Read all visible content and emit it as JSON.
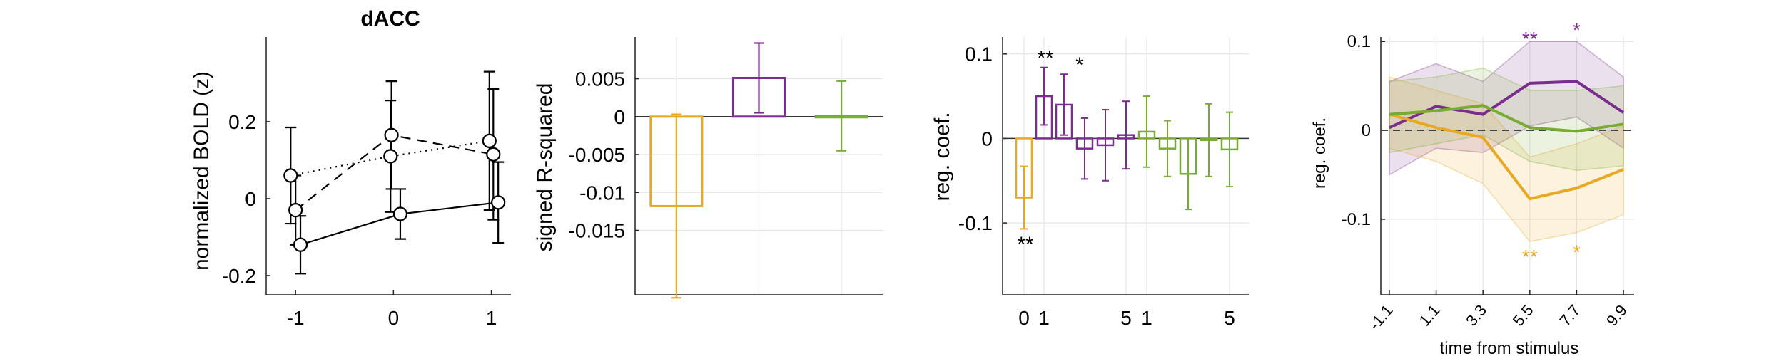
{
  "colors": {
    "yellow": "#e8a820",
    "purple": "#7b2d8e",
    "green": "#77ac30",
    "black": "#000000",
    "grid": "#e6e6e6"
  },
  "chart_data": [
    {
      "id": "A",
      "type": "line",
      "title": "dACC",
      "xlabel": "",
      "ylabel": "normalized BOLD (z)",
      "xlim": [
        -1.3,
        1.2
      ],
      "ylim": [
        -0.25,
        0.42
      ],
      "xticks": [
        -1,
        0,
        1
      ],
      "xtick_labels": [
        "-1",
        "0",
        "1"
      ],
      "yticks": [
        -0.2,
        0,
        0.2
      ],
      "ytick_labels": [
        "-0.2",
        "0",
        "0.2"
      ],
      "grid": false,
      "series": [
        {
          "style": "solid",
          "x": [
            -0.95,
            0.07,
            1.07
          ],
          "y": [
            -0.12,
            -0.04,
            -0.01
          ],
          "err": [
            0.075,
            0.065,
            0.105
          ]
        },
        {
          "style": "dashed",
          "x": [
            -1.0,
            -0.02,
            1.02
          ],
          "y": [
            -0.03,
            0.165,
            0.115
          ],
          "err": [
            0.09,
            0.14,
            0.17
          ]
        },
        {
          "style": "dotted",
          "x": [
            -1.05,
            -0.03,
            0.98
          ],
          "y": [
            0.06,
            0.11,
            0.15
          ],
          "err": [
            0.125,
            0.145,
            0.18
          ]
        }
      ]
    },
    {
      "id": "B",
      "type": "bar",
      "title": "",
      "xlabel": "",
      "ylabel": "signed R-squared",
      "ylim": [
        -0.0235,
        0.0105
      ],
      "yticks": [
        0.005,
        0,
        -0.005,
        -0.01,
        -0.015
      ],
      "ytick_labels": [
        "0.005",
        "0",
        "-0.005",
        "-0.01",
        "-0.015"
      ],
      "xtick_count": 3,
      "grid": true,
      "bars": [
        {
          "color": "yellow",
          "value": -0.0118,
          "err": 0.0121
        },
        {
          "color": "purple",
          "value": 0.0051,
          "err": 0.0046
        },
        {
          "color": "green",
          "value": 0.0001,
          "err": 0.0046
        }
      ]
    },
    {
      "id": "C",
      "type": "bar",
      "title": "",
      "xlabel": "",
      "ylabel": "reg. coef.",
      "ylim": [
        -0.185,
        0.12
      ],
      "yticks": [
        0.1,
        0,
        -0.1
      ],
      "ytick_labels": [
        "0.1",
        "0",
        "-0.1"
      ],
      "xtick_labels": [
        "0",
        "1",
        "5",
        "1",
        "5"
      ],
      "grid": true,
      "bars": [
        {
          "color": "yellow",
          "value": -0.07,
          "err": 0.037,
          "star": "**",
          "star_y": -0.12
        },
        {
          "color": "purple",
          "value": 0.05,
          "err": 0.034,
          "star": "**",
          "star_y": 0.1
        },
        {
          "color": "purple",
          "value": 0.04,
          "err": 0.036,
          "star": "*",
          "star_y": 0.092
        },
        {
          "color": "purple",
          "value": -0.012,
          "err": 0.036
        },
        {
          "color": "purple",
          "value": -0.008,
          "err": 0.042
        },
        {
          "color": "purple",
          "value": 0.004,
          "err": 0.04
        },
        {
          "color": "green",
          "value": 0.008,
          "err": 0.042
        },
        {
          "color": "green",
          "value": -0.012,
          "err": 0.033
        },
        {
          "color": "green",
          "value": -0.042,
          "err": 0.042
        },
        {
          "color": "green",
          "value": -0.002,
          "err": 0.043
        },
        {
          "color": "green",
          "value": -0.013,
          "err": 0.044
        }
      ]
    },
    {
      "id": "D",
      "type": "line",
      "title": "",
      "xlabel": "time from stimulus",
      "ylabel": "reg. coef.",
      "xticks": [
        -1.1,
        1.1,
        3.3,
        5.5,
        7.7,
        9.9
      ],
      "xtick_labels": [
        "-1.1",
        "1.1",
        "3.3",
        "5.5",
        "7.7",
        "9.9"
      ],
      "xlim": [
        -1.5,
        10.4
      ],
      "ylim": [
        -0.185,
        0.105
      ],
      "yticks": [
        0.1,
        0,
        -0.1
      ],
      "ytick_labels": [
        "0.1",
        "0",
        "-0.1"
      ],
      "grid": true,
      "zero_line": "dashed",
      "series": [
        {
          "color": "purple",
          "x": [
            -1.1,
            1.1,
            3.3,
            5.5,
            7.7,
            9.9
          ],
          "y": [
            0.003,
            0.027,
            0.018,
            0.053,
            0.055,
            0.02
          ],
          "lower": [
            -0.05,
            -0.02,
            -0.025,
            0.005,
            0.015,
            -0.02
          ],
          "upper": [
            0.055,
            0.075,
            0.055,
            0.1,
            0.1,
            0.06
          ]
        },
        {
          "color": "yellow",
          "x": [
            -1.1,
            1.1,
            3.3,
            5.5,
            7.7,
            9.9
          ],
          "y": [
            0.018,
            0.003,
            -0.008,
            -0.077,
            -0.065,
            -0.044
          ],
          "lower": [
            -0.02,
            -0.035,
            -0.06,
            -0.125,
            -0.115,
            -0.095
          ],
          "upper": [
            0.06,
            0.045,
            0.03,
            -0.03,
            -0.015,
            0.005
          ]
        },
        {
          "color": "green",
          "x": [
            -1.1,
            1.1,
            3.3,
            5.5,
            7.7,
            9.9
          ],
          "y": [
            0.018,
            0.022,
            0.028,
            0.003,
            -0.001,
            0.007
          ],
          "lower": [
            -0.025,
            -0.015,
            -0.005,
            -0.035,
            -0.045,
            -0.04
          ],
          "upper": [
            0.055,
            0.06,
            0.07,
            0.045,
            0.045,
            0.05
          ]
        }
      ],
      "stars": [
        {
          "color": "purple",
          "x": 5.5,
          "y": 0.105,
          "text": "**"
        },
        {
          "color": "purple",
          "x": 7.7,
          "y": 0.115,
          "text": "*"
        },
        {
          "color": "yellow",
          "x": 5.5,
          "y": -0.14,
          "text": "**"
        },
        {
          "color": "yellow",
          "x": 7.7,
          "y": -0.135,
          "text": "*"
        }
      ]
    }
  ]
}
